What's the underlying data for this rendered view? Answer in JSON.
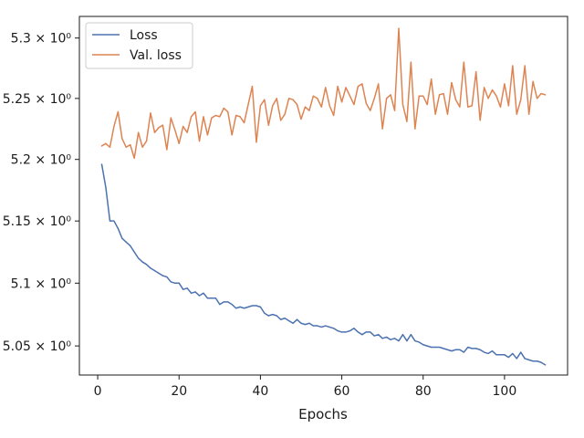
{
  "chart_data": {
    "type": "line",
    "title": "",
    "xlabel": "Epochs",
    "ylabel": "",
    "xlim": [
      -4.5,
      115.5
    ],
    "ylim": [
      5.027,
      5.318
    ],
    "y_scale": "log",
    "grid": false,
    "legend_position": "top-left",
    "x_ticks": [
      0,
      20,
      40,
      60,
      80,
      100
    ],
    "x_tick_labels": [
      "0",
      "20",
      "40",
      "60",
      "80",
      "100"
    ],
    "y_ticks": [
      5.05,
      5.1,
      5.15,
      5.2,
      5.25,
      5.3
    ],
    "y_tick_labels": [
      "5.05 × 10⁰",
      "5.1 × 10⁰",
      "5.15 × 10⁰",
      "5.2 × 10⁰",
      "5.25 × 10⁰",
      "5.3 × 10⁰"
    ],
    "x": [
      1,
      2,
      3,
      4,
      5,
      6,
      7,
      8,
      9,
      10,
      11,
      12,
      13,
      14,
      15,
      16,
      17,
      18,
      19,
      20,
      21,
      22,
      23,
      24,
      25,
      26,
      27,
      28,
      29,
      30,
      31,
      32,
      33,
      34,
      35,
      36,
      37,
      38,
      39,
      40,
      41,
      42,
      43,
      44,
      45,
      46,
      47,
      48,
      49,
      50,
      51,
      52,
      53,
      54,
      55,
      56,
      57,
      58,
      59,
      60,
      61,
      62,
      63,
      64,
      65,
      66,
      67,
      68,
      69,
      70,
      71,
      72,
      73,
      74,
      75,
      76,
      77,
      78,
      79,
      80,
      81,
      82,
      83,
      84,
      85,
      86,
      87,
      88,
      89,
      90,
      91,
      92,
      93,
      94,
      95,
      96,
      97,
      98,
      99,
      100,
      101,
      102,
      103,
      104,
      105,
      106,
      107,
      108,
      109,
      110
    ],
    "series": [
      {
        "name": "Loss",
        "color": "#4c72b0",
        "values": [
          5.196,
          5.177,
          5.15,
          5.15,
          5.144,
          5.136,
          5.133,
          5.13,
          5.125,
          5.12,
          5.117,
          5.115,
          5.112,
          5.11,
          5.108,
          5.106,
          5.105,
          5.101,
          5.1,
          5.1,
          5.095,
          5.096,
          5.092,
          5.093,
          5.09,
          5.092,
          5.088,
          5.088,
          5.088,
          5.083,
          5.085,
          5.085,
          5.083,
          5.08,
          5.081,
          5.08,
          5.081,
          5.082,
          5.082,
          5.081,
          5.076,
          5.074,
          5.075,
          5.074,
          5.071,
          5.072,
          5.07,
          5.068,
          5.071,
          5.068,
          5.067,
          5.068,
          5.066,
          5.066,
          5.065,
          5.066,
          5.065,
          5.064,
          5.062,
          5.061,
          5.061,
          5.062,
          5.064,
          5.061,
          5.059,
          5.061,
          5.061,
          5.058,
          5.059,
          5.056,
          5.057,
          5.055,
          5.056,
          5.054,
          5.059,
          5.054,
          5.059,
          5.054,
          5.053,
          5.051,
          5.05,
          5.049,
          5.049,
          5.049,
          5.048,
          5.047,
          5.046,
          5.047,
          5.047,
          5.045,
          5.049,
          5.048,
          5.048,
          5.047,
          5.045,
          5.044,
          5.046,
          5.043,
          5.043,
          5.043,
          5.041,
          5.044,
          5.04,
          5.045,
          5.04,
          5.039,
          5.038,
          5.038,
          5.037,
          5.035
        ]
      },
      {
        "name": "Val. loss",
        "color": "#dd8452",
        "values": [
          5.211,
          5.213,
          5.21,
          5.227,
          5.239,
          5.217,
          5.21,
          5.212,
          5.201,
          5.222,
          5.21,
          5.215,
          5.238,
          5.222,
          5.226,
          5.228,
          5.208,
          5.234,
          5.224,
          5.213,
          5.227,
          5.222,
          5.235,
          5.239,
          5.215,
          5.235,
          5.22,
          5.234,
          5.236,
          5.235,
          5.242,
          5.239,
          5.22,
          5.236,
          5.235,
          5.23,
          5.245,
          5.26,
          5.214,
          5.244,
          5.249,
          5.228,
          5.244,
          5.25,
          5.232,
          5.237,
          5.25,
          5.249,
          5.245,
          5.233,
          5.243,
          5.24,
          5.252,
          5.25,
          5.243,
          5.259,
          5.244,
          5.236,
          5.26,
          5.247,
          5.259,
          5.252,
          5.245,
          5.26,
          5.262,
          5.246,
          5.24,
          5.25,
          5.262,
          5.225,
          5.25,
          5.253,
          5.24,
          5.308,
          5.245,
          5.231,
          5.28,
          5.225,
          5.252,
          5.252,
          5.245,
          5.266,
          5.237,
          5.253,
          5.254,
          5.237,
          5.263,
          5.249,
          5.243,
          5.28,
          5.243,
          5.244,
          5.272,
          5.232,
          5.259,
          5.25,
          5.257,
          5.252,
          5.243,
          5.262,
          5.244,
          5.277,
          5.237,
          5.249,
          5.277,
          5.237,
          5.264,
          5.25,
          5.254,
          5.253
        ]
      }
    ]
  }
}
